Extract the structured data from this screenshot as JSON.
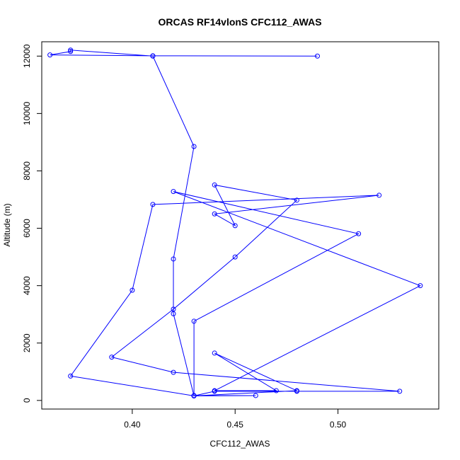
{
  "chart_data": {
    "type": "line",
    "title": "ORCAS RF14vlonS CFC112_AWAS",
    "xlabel": "CFC112_AWAS",
    "ylabel": "Altitude (m)",
    "xlim": [
      0.356,
      0.549
    ],
    "ylim": [
      -300,
      12500
    ],
    "xticks": [
      0.4,
      0.45,
      0.5
    ],
    "xtick_labels": [
      "0.40",
      "0.45",
      "0.50"
    ],
    "yticks": [
      0,
      2000,
      4000,
      6000,
      8000,
      10000,
      12000
    ],
    "ytick_labels": [
      "0",
      "2000",
      "4000",
      "6000",
      "8000",
      "10000",
      "12000"
    ],
    "grid": false,
    "colors": {
      "series": "#0000ff",
      "axes": "#000000"
    },
    "series": [
      {
        "marker": "open-circle",
        "x": [
          0.49,
          0.41,
          0.36,
          0.37,
          0.37,
          0.41,
          0.43,
          0.42,
          0.42,
          0.43,
          0.43,
          0.46,
          0.43,
          0.44,
          0.48,
          0.53,
          0.42,
          0.39,
          0.42,
          0.45,
          0.48,
          0.44,
          0.45,
          0.44,
          0.52,
          0.41,
          0.4,
          0.37,
          0.43,
          0.48,
          0.44,
          0.47,
          0.44,
          0.54,
          0.42,
          0.51,
          0.43,
          0.43
        ],
        "y": [
          12000,
          12010,
          12040,
          12160,
          12210,
          12000,
          8850,
          4930,
          3020,
          160,
          170,
          170,
          160,
          320,
          320,
          320,
          980,
          1510,
          3180,
          5000,
          6980,
          7510,
          6090,
          6500,
          7150,
          6830,
          3840,
          850,
          160,
          340,
          1650,
          340,
          340,
          4000,
          7280,
          5810,
          2760,
          170
        ]
      }
    ]
  }
}
